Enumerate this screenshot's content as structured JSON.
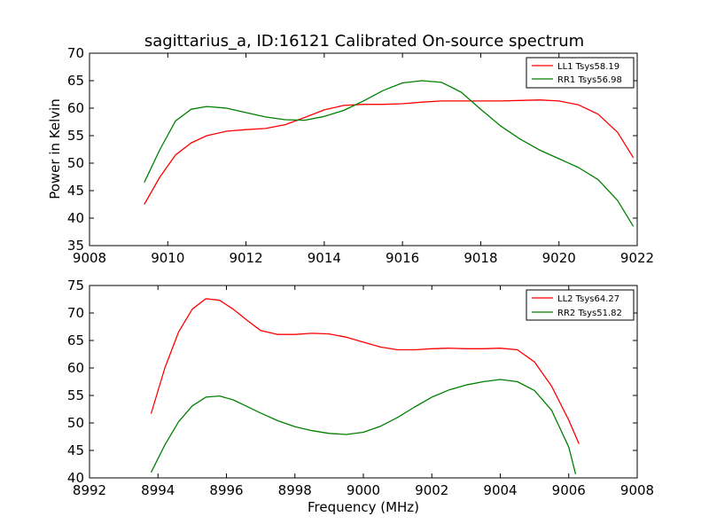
{
  "chart_data": [
    {
      "type": "line",
      "title": "sagittarius_a, ID:16121 Calibrated On-source spectrum",
      "xlabel": "",
      "ylabel": "Power in Kelvin",
      "xlim": [
        9008,
        9022
      ],
      "ylim": [
        35,
        70
      ],
      "xticks": [
        "9008",
        "9010",
        "9012",
        "9014",
        "9016",
        "9018",
        "9020",
        "9022"
      ],
      "yticks": [
        "35",
        "40",
        "45",
        "50",
        "55",
        "60",
        "65",
        "70"
      ],
      "legend_position": "upper-right",
      "grid": false,
      "series": [
        {
          "name": "LL1 Tsys58.19",
          "color": "#ff0000",
          "x": [
            9009.4,
            9009.8,
            9010.2,
            9010.6,
            9011.0,
            9011.5,
            9012.0,
            9012.5,
            9013.0,
            9013.5,
            9014.0,
            9014.5,
            9015.0,
            9015.5,
            9016.0,
            9016.5,
            9017.0,
            9017.5,
            9018.0,
            9018.5,
            9019.0,
            9019.5,
            9020.0,
            9020.5,
            9021.0,
            9021.5,
            9021.9
          ],
          "y": [
            42.5,
            47.5,
            51.5,
            53.7,
            55.0,
            55.8,
            56.1,
            56.3,
            57.0,
            58.3,
            59.7,
            60.5,
            60.7,
            60.7,
            60.8,
            61.1,
            61.3,
            61.3,
            61.3,
            61.3,
            61.4,
            61.5,
            61.3,
            60.6,
            58.9,
            55.6,
            51.0
          ]
        },
        {
          "name": "RR1 Tsys56.98",
          "color": "#008000",
          "x": [
            9009.4,
            9009.8,
            9010.2,
            9010.6,
            9011.0,
            9011.5,
            9012.0,
            9012.5,
            9013.0,
            9013.5,
            9014.0,
            9014.5,
            9015.0,
            9015.5,
            9016.0,
            9016.5,
            9017.0,
            9017.5,
            9018.0,
            9018.5,
            9019.0,
            9019.5,
            9020.0,
            9020.5,
            9021.0,
            9021.5,
            9021.9
          ],
          "y": [
            46.5,
            52.5,
            57.7,
            59.8,
            60.3,
            60.0,
            59.2,
            58.4,
            57.9,
            57.8,
            58.5,
            59.6,
            61.3,
            63.2,
            64.6,
            65.0,
            64.7,
            62.9,
            59.8,
            56.8,
            54.4,
            52.4,
            50.8,
            49.2,
            47.0,
            43.2,
            38.5
          ]
        }
      ]
    },
    {
      "type": "line",
      "title": "",
      "xlabel": "Frequency (MHz)",
      "ylabel": "",
      "xlim": [
        8992,
        9008
      ],
      "ylim": [
        40,
        75
      ],
      "xticks": [
        "8992",
        "8994",
        "8996",
        "8998",
        "9000",
        "9002",
        "9004",
        "9006",
        "9008"
      ],
      "yticks": [
        "40",
        "45",
        "50",
        "55",
        "60",
        "65",
        "70",
        "75"
      ],
      "legend_position": "upper-right",
      "grid": false,
      "series": [
        {
          "name": "LL2 Tsys64.27",
          "color": "#ff0000",
          "x": [
            8993.8,
            8994.2,
            8994.6,
            8995.0,
            8995.4,
            8995.8,
            8996.2,
            8996.6,
            8997.0,
            8997.5,
            8998.0,
            8998.5,
            8999.0,
            8999.5,
            9000.0,
            9000.5,
            9001.0,
            9001.5,
            9002.0,
            9002.5,
            9003.0,
            9003.5,
            9004.0,
            9004.5,
            9005.0,
            9005.5,
            9006.0,
            9006.3
          ],
          "y": [
            51.7,
            60.0,
            66.5,
            70.7,
            72.6,
            72.3,
            70.7,
            68.7,
            66.8,
            66.1,
            66.1,
            66.3,
            66.2,
            65.6,
            64.7,
            63.8,
            63.3,
            63.3,
            63.5,
            63.6,
            63.5,
            63.5,
            63.6,
            63.3,
            61.1,
            56.7,
            50.5,
            46.2
          ]
        },
        {
          "name": "RR2 Tsys51.82",
          "color": "#008000",
          "x": [
            8993.8,
            8994.2,
            8994.6,
            8995.0,
            8995.4,
            8995.8,
            8996.2,
            8996.6,
            8997.0,
            8997.5,
            8998.0,
            8998.5,
            8999.0,
            8999.5,
            9000.0,
            9000.5,
            9001.0,
            9001.5,
            9002.0,
            9002.5,
            9003.0,
            9003.5,
            9004.0,
            9004.5,
            9005.0,
            9005.5,
            9006.0,
            9006.2
          ],
          "y": [
            41.0,
            46.0,
            50.2,
            53.1,
            54.7,
            54.9,
            54.2,
            53.0,
            51.8,
            50.4,
            49.3,
            48.6,
            48.1,
            47.9,
            48.3,
            49.4,
            51.0,
            52.9,
            54.7,
            56.0,
            56.9,
            57.5,
            57.9,
            57.5,
            55.9,
            52.3,
            45.6,
            40.7
          ]
        }
      ]
    }
  ]
}
